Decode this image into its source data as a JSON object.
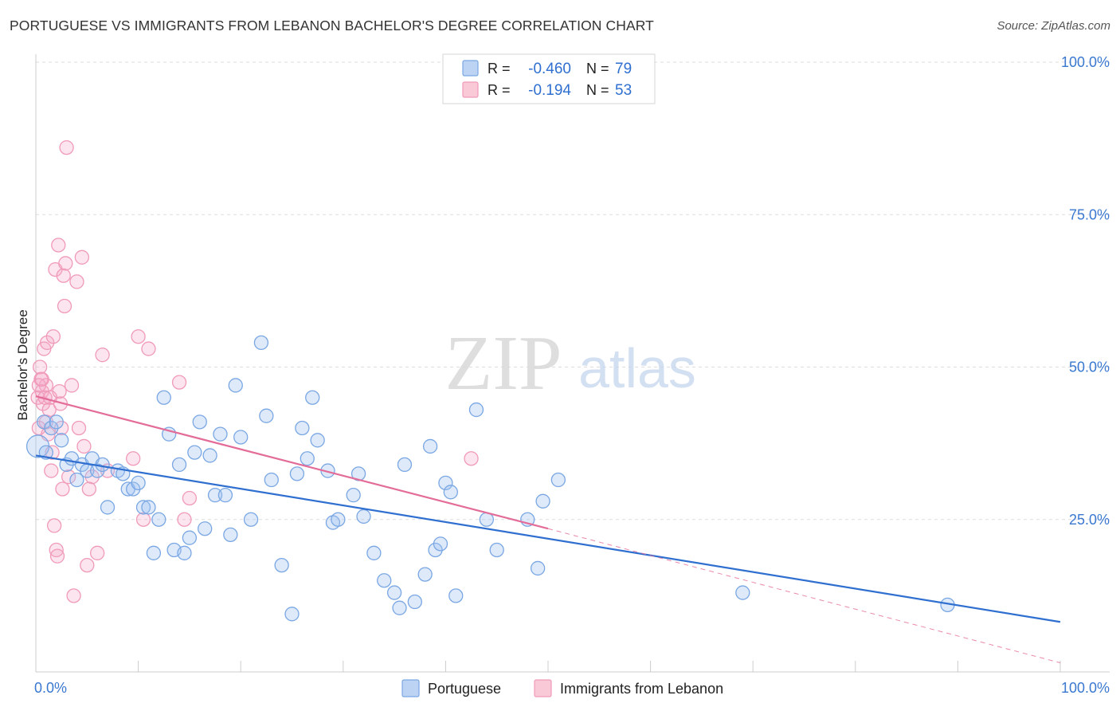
{
  "title": "PORTUGUESE VS IMMIGRANTS FROM LEBANON BACHELOR'S DEGREE CORRELATION CHART",
  "source": "Source: ZipAtlas.com",
  "watermark": {
    "zip": "ZIP",
    "atlas": "atlas"
  },
  "chart_data": {
    "type": "scatter",
    "title": "PORTUGUESE VS IMMIGRANTS FROM LEBANON BACHELOR'S DEGREE CORRELATION CHART",
    "xlabel": "",
    "ylabel": "Bachelor's Degree",
    "xlim": [
      0,
      100
    ],
    "ylim": [
      0,
      100
    ],
    "x_tick_labels": [
      "0.0%",
      "100.0%"
    ],
    "y_ticks": [
      25,
      50,
      75,
      100
    ],
    "y_tick_labels": [
      "25.0%",
      "50.0%",
      "75.0%",
      "100.0%"
    ],
    "grid": true,
    "legend_position": "bottom",
    "stats": [
      {
        "series": "Portuguese",
        "r_label": "R =",
        "r": "-0.460",
        "n_label": "N =",
        "n": "79"
      },
      {
        "series": "Immigrants from Lebanon",
        "r_label": "R =",
        "r": "-0.194",
        "n_label": "N =",
        "n": "53"
      }
    ],
    "series": [
      {
        "name": "Portuguese",
        "color": "#7aa7e3",
        "line_color": "#2f6fd0",
        "trend": {
          "x0": 0,
          "y0": 35.5,
          "x1": 100,
          "y1": 8.2
        },
        "points": [
          [
            0.2,
            37
          ],
          [
            0.8,
            41
          ],
          [
            1.5,
            40
          ],
          [
            2.5,
            38
          ],
          [
            3,
            34
          ],
          [
            3.5,
            35
          ],
          [
            4,
            31.5
          ],
          [
            4.5,
            34
          ],
          [
            5,
            33
          ],
          [
            5.5,
            35
          ],
          [
            6,
            33
          ],
          [
            6.5,
            34
          ],
          [
            7,
            27
          ],
          [
            8,
            33
          ],
          [
            8.5,
            32.5
          ],
          [
            9,
            30
          ],
          [
            9.5,
            30
          ],
          [
            10,
            31
          ],
          [
            10.5,
            27
          ],
          [
            11,
            27
          ],
          [
            11.5,
            19.5
          ],
          [
            12,
            25
          ],
          [
            12.5,
            45
          ],
          [
            13,
            39
          ],
          [
            13.5,
            20
          ],
          [
            14,
            34
          ],
          [
            14.5,
            19.5
          ],
          [
            15,
            22
          ],
          [
            15.5,
            36
          ],
          [
            16,
            41
          ],
          [
            16.5,
            23.5
          ],
          [
            17,
            35.5
          ],
          [
            17.5,
            29
          ],
          [
            18,
            39
          ],
          [
            18.5,
            29
          ],
          [
            19,
            22.5
          ],
          [
            19.5,
            47
          ],
          [
            20,
            38.5
          ],
          [
            21,
            25
          ],
          [
            22,
            54
          ],
          [
            22.5,
            42
          ],
          [
            23,
            31.5
          ],
          [
            24,
            17.5
          ],
          [
            25,
            9.5
          ],
          [
            25.5,
            32.5
          ],
          [
            26,
            40
          ],
          [
            26.5,
            35
          ],
          [
            27,
            45
          ],
          [
            27.5,
            38
          ],
          [
            28.5,
            33
          ],
          [
            29,
            24.5
          ],
          [
            29.5,
            25
          ],
          [
            31,
            29
          ],
          [
            31.5,
            32.5
          ],
          [
            32,
            25.5
          ],
          [
            33,
            19.5
          ],
          [
            34,
            15
          ],
          [
            35,
            13
          ],
          [
            35.5,
            10.5
          ],
          [
            36,
            34
          ],
          [
            37,
            11.5
          ],
          [
            38,
            16
          ],
          [
            38.5,
            37
          ],
          [
            39,
            20
          ],
          [
            39.5,
            21
          ],
          [
            40,
            31
          ],
          [
            40.5,
            29.5
          ],
          [
            41,
            12.5
          ],
          [
            43,
            43
          ],
          [
            44,
            25
          ],
          [
            45,
            20
          ],
          [
            48,
            25
          ],
          [
            49,
            17
          ],
          [
            49.5,
            28
          ],
          [
            51,
            31.5
          ],
          [
            69,
            13
          ],
          [
            89,
            11
          ],
          [
            1,
            36
          ],
          [
            2,
            41
          ]
        ]
      },
      {
        "name": "Immigrants from Lebanon",
        "color": "#f09ab9",
        "line_color": "#e36c98",
        "trend": {
          "x0": 0,
          "y0": 45.2,
          "x1": 50,
          "y1": 23.5
        },
        "trend_dashed": {
          "x0": 50,
          "y0": 23.5,
          "x1": 100,
          "y1": 1.5
        },
        "points": [
          [
            0.2,
            45
          ],
          [
            0.3,
            40
          ],
          [
            0.4,
            50
          ],
          [
            0.5,
            48
          ],
          [
            0.6,
            46
          ],
          [
            0.7,
            44
          ],
          [
            0.8,
            53
          ],
          [
            0.9,
            45
          ],
          [
            1,
            47
          ],
          [
            1.1,
            54
          ],
          [
            1.2,
            39
          ],
          [
            1.3,
            43
          ],
          [
            1.4,
            45
          ],
          [
            1.5,
            33
          ],
          [
            1.6,
            36
          ],
          [
            1.7,
            55
          ],
          [
            1.8,
            24
          ],
          [
            1.9,
            66
          ],
          [
            2,
            20
          ],
          [
            2.1,
            19
          ],
          [
            2.2,
            70
          ],
          [
            2.3,
            46
          ],
          [
            2.4,
            44
          ],
          [
            2.5,
            40
          ],
          [
            2.6,
            30
          ],
          [
            2.7,
            65
          ],
          [
            2.8,
            60
          ],
          [
            2.9,
            67
          ],
          [
            3,
            86
          ],
          [
            3.2,
            32
          ],
          [
            3.5,
            47
          ],
          [
            3.7,
            12.5
          ],
          [
            4,
            64
          ],
          [
            4.2,
            40
          ],
          [
            4.5,
            68
          ],
          [
            4.7,
            37
          ],
          [
            5,
            17.5
          ],
          [
            5.2,
            30
          ],
          [
            5.5,
            32
          ],
          [
            6,
            19.5
          ],
          [
            6.5,
            52
          ],
          [
            7,
            33
          ],
          [
            9.5,
            35
          ],
          [
            10,
            55
          ],
          [
            10.5,
            25
          ],
          [
            11,
            53
          ],
          [
            14,
            47.5
          ],
          [
            14.5,
            25
          ],
          [
            15,
            28.5
          ],
          [
            42.5,
            35
          ],
          [
            0.3,
            47
          ],
          [
            0.6,
            48
          ],
          [
            1,
            41
          ]
        ]
      }
    ]
  }
}
